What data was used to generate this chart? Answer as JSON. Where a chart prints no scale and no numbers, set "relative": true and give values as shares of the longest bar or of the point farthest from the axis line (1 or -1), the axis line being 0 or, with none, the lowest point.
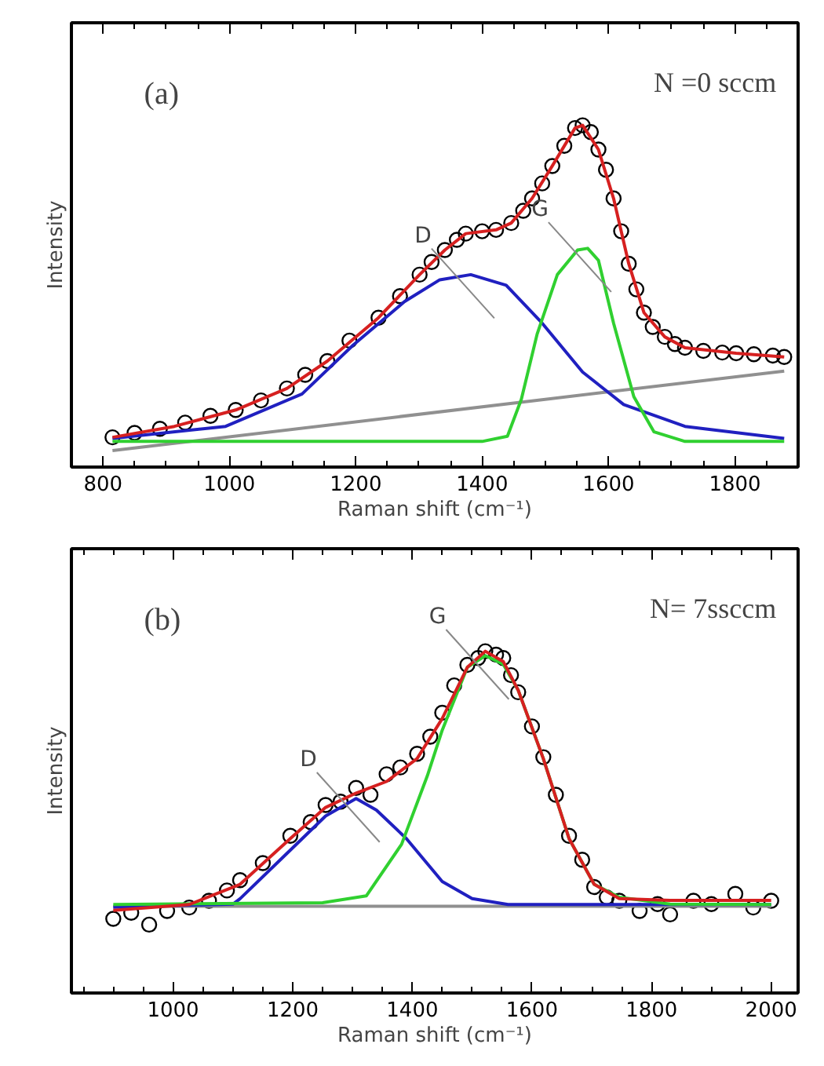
{
  "chart_data": [
    {
      "type": "line",
      "relative": true,
      "xlabel": "Raman shift (cm⁻¹)",
      "ylabel": "Intensity",
      "xlim": [
        750,
        1900
      ],
      "xticks": [
        800,
        1000,
        1200,
        1400,
        1600,
        1800
      ],
      "grid": false,
      "annotations": [
        "(a)",
        "N =0 sccm",
        "D",
        "G"
      ],
      "series": [
        {
          "type": "scatter",
          "marker": "circle",
          "color": "#000000",
          "x": [
            815,
            850,
            890,
            930,
            970,
            1010,
            1050,
            1091,
            1120,
            1155,
            1190,
            1236,
            1270,
            1301,
            1320,
            1341,
            1360,
            1374,
            1400,
            1422,
            1446,
            1465,
            1479,
            1495,
            1511,
            1530,
            1547,
            1559,
            1572,
            1584,
            1596,
            1608,
            1620,
            1632,
            1644,
            1656,
            1670,
            1689,
            1705,
            1721,
            1750,
            1780,
            1802,
            1830,
            1860,
            1878
          ],
          "values": [
            0.087,
            0.1,
            0.112,
            0.13,
            0.15,
            0.167,
            0.195,
            0.23,
            0.27,
            0.31,
            0.37,
            0.437,
            0.5,
            0.563,
            0.6,
            0.635,
            0.665,
            0.683,
            0.69,
            0.694,
            0.714,
            0.75,
            0.786,
            0.83,
            0.881,
            0.94,
            0.992,
            1.0,
            0.98,
            0.929,
            0.87,
            0.786,
            0.69,
            0.595,
            0.52,
            0.452,
            0.41,
            0.381,
            0.36,
            0.349,
            0.34,
            0.335,
            0.333,
            0.33,
            0.326,
            0.322
          ]
        },
        {
          "type": "line",
          "color": "#909090",
          "x": [
            815,
            1878
          ],
          "values": [
            0.048,
            0.281
          ]
        },
        {
          "type": "line",
          "color": "#2020c0",
          "x": [
            815,
            994,
            1115,
            1196,
            1277,
            1333,
            1382,
            1438,
            1495,
            1559,
            1624,
            1721,
            1878
          ],
          "values": [
            0.084,
            0.119,
            0.214,
            0.357,
            0.484,
            0.548,
            0.563,
            0.532,
            0.421,
            0.278,
            0.183,
            0.119,
            0.084
          ]
        },
        {
          "type": "line",
          "color": "#30d030",
          "x": [
            815,
            1400,
            1440,
            1462,
            1487,
            1519,
            1551,
            1567,
            1584,
            1608,
            1640,
            1672,
            1721,
            1878
          ],
          "values": [
            0.075,
            0.075,
            0.09,
            0.198,
            0.389,
            0.563,
            0.635,
            0.64,
            0.605,
            0.421,
            0.206,
            0.103,
            0.075,
            0.075
          ]
        },
        {
          "type": "line",
          "color": "#d62020",
          "x": [
            815,
            913,
            1010,
            1091,
            1155,
            1236,
            1301,
            1341,
            1374,
            1422,
            1446,
            1479,
            1511,
            1547,
            1559,
            1584,
            1608,
            1632,
            1656,
            1689,
            1721,
            1802,
            1878
          ],
          "values": [
            0.087,
            0.119,
            0.167,
            0.23,
            0.31,
            0.437,
            0.563,
            0.635,
            0.683,
            0.694,
            0.714,
            0.786,
            0.881,
            0.992,
            1.0,
            0.929,
            0.786,
            0.595,
            0.452,
            0.381,
            0.349,
            0.333,
            0.322
          ]
        }
      ]
    },
    {
      "type": "line",
      "relative": true,
      "xlabel": "Raman shift (cm⁻¹)",
      "ylabel": "Intensity",
      "xlim": [
        830,
        2045
      ],
      "xticks": [
        1000,
        1200,
        1400,
        1600,
        1800,
        2000
      ],
      "grid": false,
      "annotations": [
        "(b)",
        "N= 7ssccm",
        "D",
        "G"
      ],
      "series": [
        {
          "type": "scatter",
          "marker": "circle",
          "color": "#000000",
          "x": [
            900,
            930,
            960,
            990,
            1027,
            1060,
            1090,
            1112,
            1150,
            1196,
            1230,
            1255,
            1280,
            1306,
            1330,
            1357,
            1380,
            1408,
            1430,
            1450,
            1470,
            1492,
            1510,
            1522,
            1540,
            1552,
            1565,
            1577,
            1600,
            1619,
            1640,
            1662,
            1684,
            1704,
            1725,
            1746,
            1780,
            1810,
            1831,
            1870,
            1900,
            1940,
            1970,
            2000
          ],
          "values": [
            0.217,
            0.235,
            0.2,
            0.24,
            0.25,
            0.27,
            0.3,
            0.33,
            0.38,
            0.46,
            0.5,
            0.55,
            0.56,
            0.6,
            0.58,
            0.64,
            0.66,
            0.7,
            0.75,
            0.82,
            0.9,
            0.96,
            0.98,
            1.0,
            0.99,
            0.98,
            0.93,
            0.88,
            0.78,
            0.69,
            0.58,
            0.46,
            0.39,
            0.31,
            0.28,
            0.27,
            0.24,
            0.26,
            0.23,
            0.27,
            0.26,
            0.29,
            0.25,
            0.27
          ]
        },
        {
          "type": "line",
          "color": "#909090",
          "x": [
            900,
            2000
          ],
          "values": [
            0.254,
            0.254
          ]
        },
        {
          "type": "line",
          "color": "#2020c0",
          "x": [
            900,
            1100,
            1112,
            1196,
            1255,
            1306,
            1340,
            1390,
            1450,
            1500,
            1560,
            2000
          ],
          "values": [
            0.251,
            0.26,
            0.276,
            0.418,
            0.518,
            0.569,
            0.535,
            0.452,
            0.326,
            0.276,
            0.259,
            0.259
          ]
        },
        {
          "type": "line",
          "color": "#30d030",
          "x": [
            900,
            1250,
            1323,
            1382,
            1425,
            1450,
            1492,
            1522,
            1552,
            1577,
            1619,
            1662,
            1704,
            1746,
            1831,
            2000
          ],
          "values": [
            0.259,
            0.264,
            0.284,
            0.435,
            0.635,
            0.769,
            0.953,
            0.987,
            0.962,
            0.886,
            0.686,
            0.452,
            0.318,
            0.28,
            0.26,
            0.259
          ]
        },
        {
          "type": "line",
          "color": "#d62020",
          "x": [
            900,
            1027,
            1112,
            1196,
            1255,
            1306,
            1357,
            1408,
            1450,
            1492,
            1522,
            1552,
            1577,
            1619,
            1662,
            1704,
            1746,
            1831,
            2000
          ],
          "values": [
            0.242,
            0.259,
            0.318,
            0.452,
            0.543,
            0.585,
            0.619,
            0.686,
            0.803,
            0.953,
            1.0,
            0.97,
            0.886,
            0.686,
            0.452,
            0.318,
            0.276,
            0.271,
            0.271
          ]
        }
      ]
    }
  ]
}
